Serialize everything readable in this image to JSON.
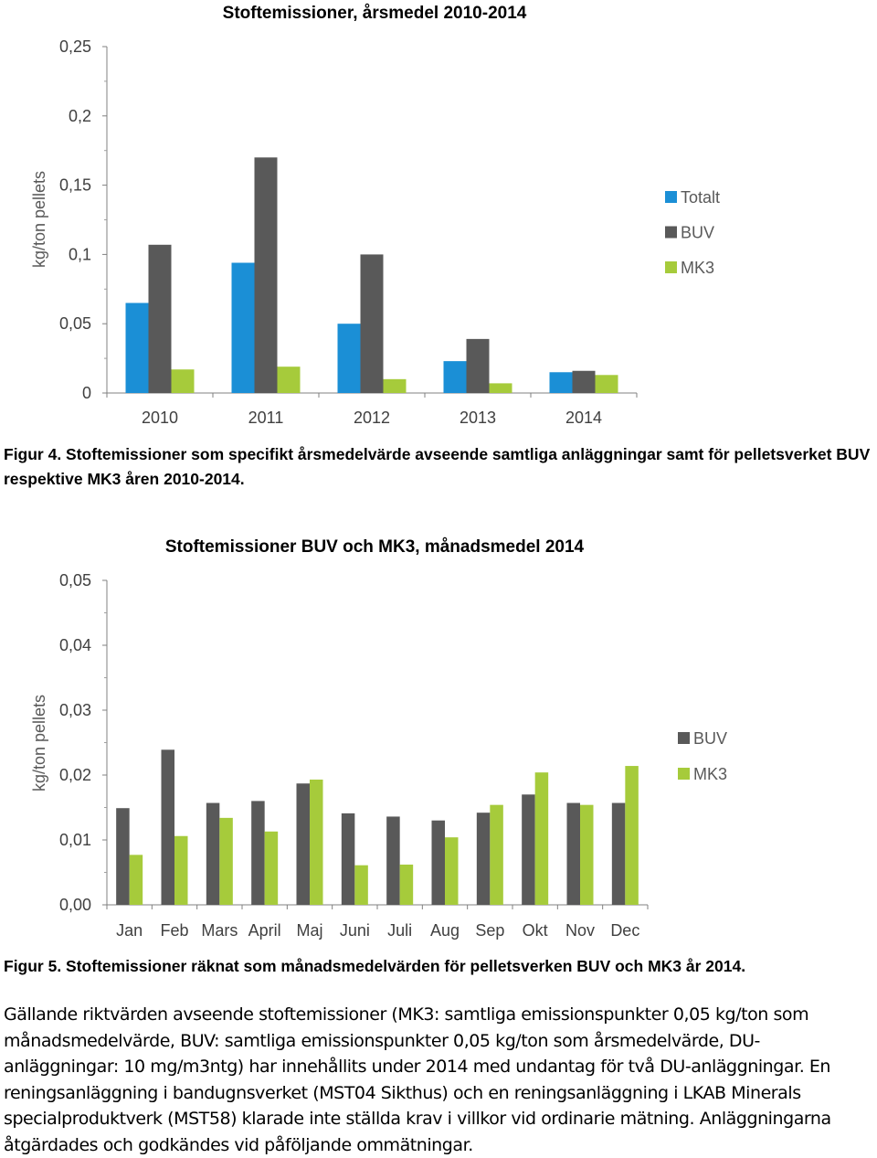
{
  "chart_data": [
    {
      "type": "bar",
      "title": "Stoftemissioner, årsmedel 2010-2014",
      "ylabel": "kg/ton pellets",
      "xlabel": "",
      "categories": [
        "2010",
        "2011",
        "2012",
        "2013",
        "2014"
      ],
      "ylim": [
        0,
        0.25
      ],
      "yticks": [
        "0",
        "0,05",
        "0,1",
        "0,15",
        "0,2",
        "0,25"
      ],
      "legend_position": "right",
      "grid": false,
      "series": [
        {
          "name": "Totalt",
          "color": "#1b8fd6",
          "values": [
            0.065,
            0.094,
            0.05,
            0.023,
            0.015
          ]
        },
        {
          "name": "BUV",
          "color": "#595959",
          "values": [
            0.107,
            0.17,
            0.1,
            0.039,
            0.016
          ]
        },
        {
          "name": "MK3",
          "color": "#a6cb3b",
          "values": [
            0.017,
            0.019,
            0.01,
            0.007,
            0.013
          ]
        }
      ]
    },
    {
      "type": "bar",
      "title": "Stoftemissioner BUV och MK3, månadsmedel 2014",
      "ylabel": "kg/ton pellets",
      "xlabel": "",
      "categories": [
        "Jan",
        "Feb",
        "Mars",
        "April",
        "Maj",
        "Juni",
        "Juli",
        "Aug",
        "Sep",
        "Okt",
        "Nov",
        "Dec"
      ],
      "ylim": [
        0,
        0.05
      ],
      "yticks": [
        "0,00",
        "0,01",
        "0,02",
        "0,03",
        "0,04",
        "0,05"
      ],
      "legend_position": "right",
      "grid": false,
      "series": [
        {
          "name": "BUV",
          "color": "#595959",
          "values": [
            0.0149,
            0.0239,
            0.0157,
            0.016,
            0.0187,
            0.0141,
            0.0136,
            0.013,
            0.0142,
            0.017,
            0.0157,
            0.0157
          ]
        },
        {
          "name": "MK3",
          "color": "#a6cb3b",
          "values": [
            0.0077,
            0.0106,
            0.0134,
            0.0113,
            0.0193,
            0.0061,
            0.0062,
            0.0104,
            0.0154,
            0.0204,
            0.0154,
            0.0214
          ]
        }
      ]
    }
  ],
  "captions": {
    "fig4": "Figur 4. Stoftemissioner som specifikt årsmedelvärde avseende samtliga anläggningar samt för pelletsverket BUV respektive MK3 åren 2010-2014.",
    "fig5": "Figur 5. Stoftemissioner räknat som månadsmedelvärden för pelletsverken BUV och MK3 år 2014."
  },
  "paragraph": [
    "Gällande riktvärden avseende stoftemissioner (MK3: samtliga emissionspunkter 0,05 kg/ton som",
    "månadsmedelvärde, BUV: samtliga emissionspunkter 0,05 kg/ton som årsmedelvärde, DU-",
    "anläggningar: 10 mg/m3ntg) har innehållits under 2014 med undantag för två DU-anläggningar. En",
    "reningsanläggning i bandugnsverket (MST04 Sikthus)  och en reningsanläggning i LKAB Minerals",
    "specialproduktverk (MST58) klarade inte ställda krav i villkor vid ordinarie mätning. Anläggningarna",
    "åtgärdades och godkändes vid påföljande ommätningar."
  ]
}
